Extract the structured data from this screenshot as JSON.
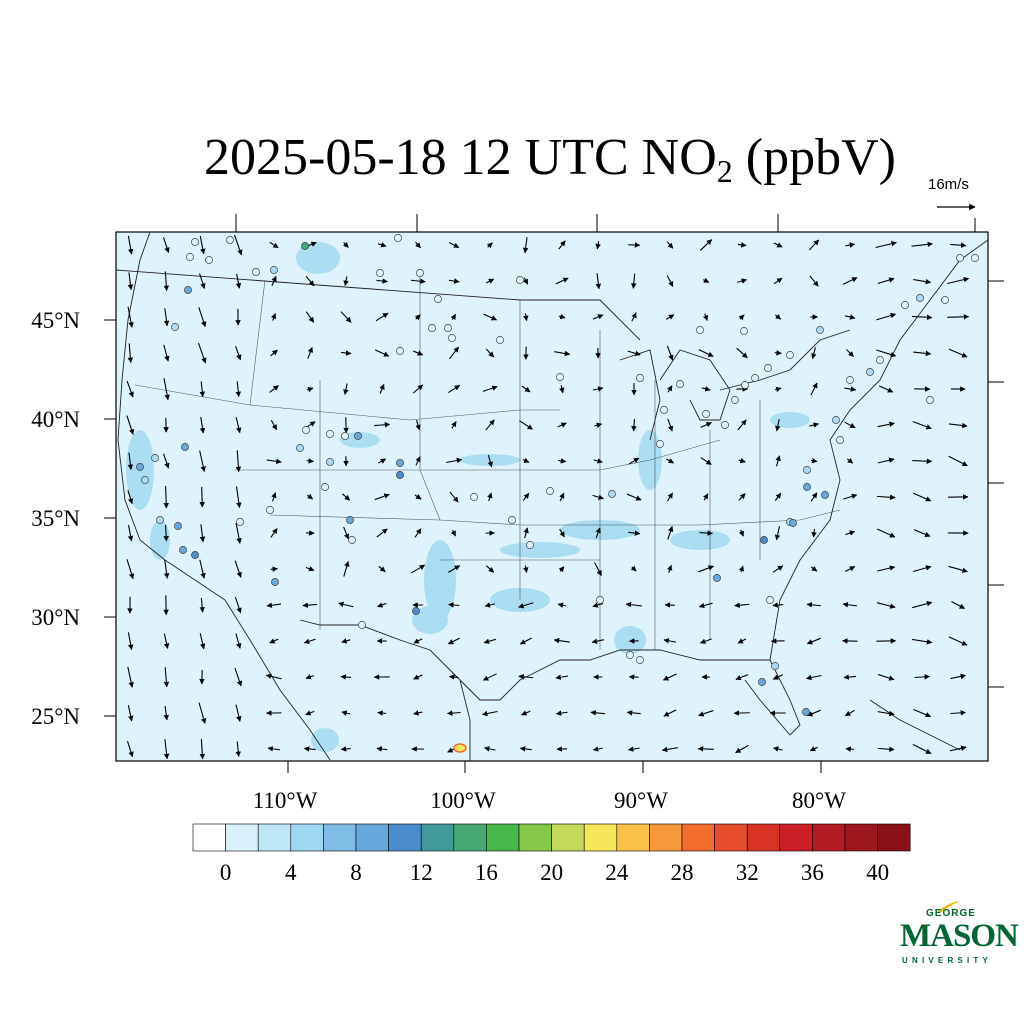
{
  "title": {
    "prefix": "2025-05-18 12 UTC NO",
    "subscript": "2",
    "suffix": " (ppbV)"
  },
  "reference_vector": {
    "label": "16m/s"
  },
  "lat_labels": [
    "45°N",
    "40°N",
    "35°N",
    "30°N",
    "25°N"
  ],
  "lon_labels": [
    "110°W",
    "100°W",
    "90°W",
    "80°W"
  ],
  "colorbar": {
    "labels": [
      "0",
      "4",
      "8",
      "12",
      "16",
      "20",
      "24",
      "28",
      "32",
      "36",
      "40"
    ],
    "colors": [
      "#ffffff",
      "#d9f0fa",
      "#bde6f7",
      "#9fd6f2",
      "#80bde6",
      "#67a8dc",
      "#4a8ccc",
      "#42999c",
      "#46a873",
      "#47b84a",
      "#86c94a",
      "#c2d95a",
      "#f7e65a",
      "#f9c04a",
      "#f7993d",
      "#f26d2e",
      "#e64d2a",
      "#d93326",
      "#cc1f26",
      "#b31a22",
      "#9e161d",
      "#8a1116"
    ]
  },
  "map": {
    "background": "#dff3fc",
    "border_color": "#000000"
  },
  "logo": {
    "line1": "GEORGE",
    "line2": "MASON",
    "line3": "UNIVERSITY"
  }
}
